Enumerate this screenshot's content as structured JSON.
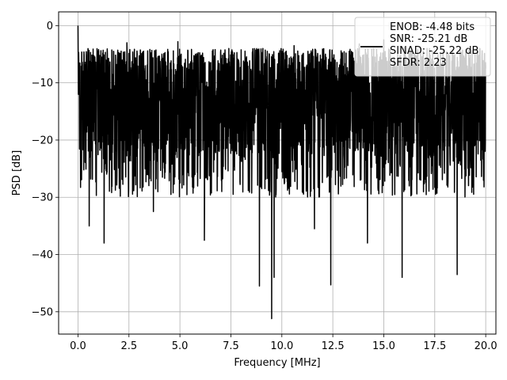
{
  "chart_data": {
    "type": "line",
    "title": "",
    "xlabel": "Frequency [MHz]",
    "ylabel": "PSD [dB]",
    "xlim": [
      -0.95,
      20.5
    ],
    "ylim": [
      -53.9,
      2.4
    ],
    "xticks": [
      0.0,
      2.5,
      5.0,
      7.5,
      10.0,
      12.5,
      15.0,
      17.5,
      20.0
    ],
    "xtick_labels": [
      "0.0",
      "2.5",
      "5.0",
      "7.5",
      "10.0",
      "12.5",
      "15.0",
      "17.5",
      "20.0"
    ],
    "yticks": [
      0,
      -10,
      -20,
      -30,
      -40,
      -50
    ],
    "ytick_labels": [
      "0",
      "−10",
      "−20",
      "−30",
      "−40",
      "−50"
    ],
    "grid": true,
    "legend_position": "top-right",
    "legend_entries": [
      "ENOB: -4.48 bits",
      "SNR: -25.21 dB",
      "SINAD: -25.22 dB",
      "SFDR: 2.23"
    ],
    "series": [
      {
        "color": "#000000",
        "description_of_shape": "dense noise floor",
        "x_range": [
          0.0,
          20.0
        ],
        "typical_range": [
          -22,
          -8
        ],
        "max": 0.0,
        "max_at": 0.0,
        "peaks": [
          {
            "x": 0.0,
            "y": 0.0
          },
          {
            "x": 2.4,
            "y": -3.0
          },
          {
            "x": 4.9,
            "y": -2.8
          },
          {
            "x": 7.4,
            "y": -4.0
          },
          {
            "x": 10.6,
            "y": -3.5
          },
          {
            "x": 13.8,
            "y": -3.2
          },
          {
            "x": 15.0,
            "y": -2.5
          },
          {
            "x": 16.0,
            "y": -3.8
          },
          {
            "x": 17.9,
            "y": -4.2
          }
        ],
        "dips": [
          {
            "x": 0.55,
            "y": -35.0
          },
          {
            "x": 1.28,
            "y": -38.0
          },
          {
            "x": 6.2,
            "y": -37.5
          },
          {
            "x": 8.9,
            "y": -45.5
          },
          {
            "x": 9.5,
            "y": -51.2
          },
          {
            "x": 9.62,
            "y": -44.0
          },
          {
            "x": 12.4,
            "y": -45.3
          },
          {
            "x": 15.9,
            "y": -44.0
          },
          {
            "x": 18.6,
            "y": -43.5
          },
          {
            "x": 14.2,
            "y": -38.0
          },
          {
            "x": 11.6,
            "y": -35.5
          },
          {
            "x": 3.7,
            "y": -32.5
          }
        ]
      }
    ]
  }
}
